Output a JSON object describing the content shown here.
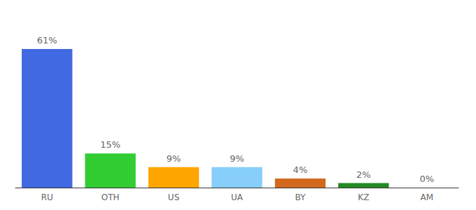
{
  "chart_data": {
    "type": "bar",
    "categories": [
      "RU",
      "OTH",
      "US",
      "UA",
      "BY",
      "KZ",
      "AM"
    ],
    "values": [
      61,
      15,
      9,
      9,
      4,
      2,
      0
    ],
    "value_labels": [
      "61%",
      "15%",
      "9%",
      "9%",
      "4%",
      "2%",
      "0%"
    ],
    "colors": [
      "#4169e1",
      "#32cd32",
      "#ffa500",
      "#87cefa",
      "#d2691e",
      "#228b22",
      "#b22222"
    ],
    "ylim": [
      0,
      61
    ],
    "grid": false,
    "data_labels": true,
    "tick_labels": "x"
  }
}
